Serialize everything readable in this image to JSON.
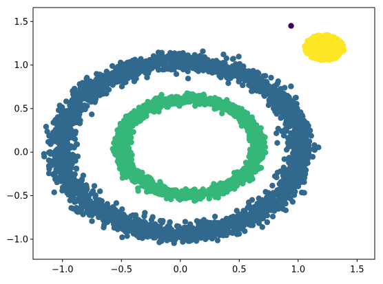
{
  "chart_data": {
    "type": "scatter",
    "title": "",
    "xlabel": "",
    "ylabel": "",
    "xlim": [
      -1.25,
      1.65
    ],
    "ylim": [
      -1.23,
      1.66
    ],
    "grid": false,
    "legend": "none",
    "x_ticks": [
      -1.0,
      -0.5,
      0.0,
      0.5,
      1.0,
      1.5
    ],
    "x_tick_labels": [
      "−1.0",
      "−0.5",
      "0.0",
      "0.5",
      "1.0",
      "1.5"
    ],
    "y_ticks": [
      -1.0,
      -0.5,
      0.0,
      0.5,
      1.0,
      1.5
    ],
    "y_tick_labels": [
      "−1.0",
      "−0.5",
      "0.0",
      "0.5",
      "1.0",
      "1.5"
    ],
    "clusters": [
      {
        "shape": "ring",
        "color": "#31688e",
        "center": [
          0.0,
          0.05
        ],
        "radius_x": 1.02,
        "radius_y": 0.98,
        "noise": 0.055,
        "count": 2600
      },
      {
        "shape": "ring",
        "color": "#35b779",
        "center": [
          0.08,
          0.06
        ],
        "radius_x": 0.58,
        "radius_y": 0.55,
        "noise": 0.05,
        "count": 2000
      },
      {
        "shape": "blob",
        "color": "#fde725",
        "center": [
          1.22,
          1.2
        ],
        "radius_x": 0.17,
        "radius_y": 0.15,
        "count": 1400
      },
      {
        "shape": "points",
        "color": "#440154",
        "x": [
          0.94
        ],
        "y": [
          1.45
        ]
      }
    ]
  }
}
